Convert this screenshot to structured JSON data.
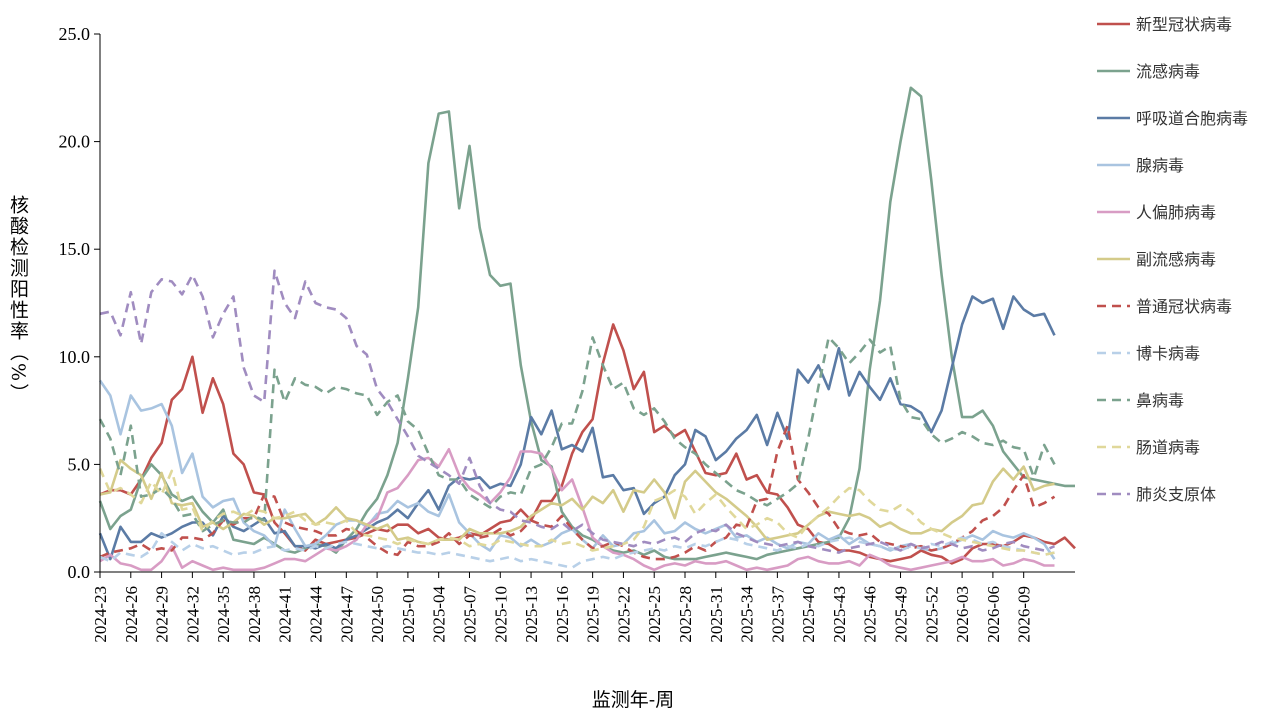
{
  "chart_data": {
    "type": "line",
    "xlabel": "监测年-周",
    "ylabel": "核酸检测阳性率（%）",
    "ylim": [
      0,
      25
    ],
    "yticks": [
      "0.0",
      "5.0",
      "10.0",
      "15.0",
      "20.0",
      "25.0"
    ],
    "grid": false,
    "legend_position": "right",
    "x_tick_labels": [
      "2024-23",
      "2024-26",
      "2024-29",
      "2024-32",
      "2024-35",
      "2024-38",
      "2024-41",
      "2024-44",
      "2024-47",
      "2024-50",
      "2025-01",
      "2025-04",
      "2025-07",
      "2025-10",
      "2025-13",
      "2025-16",
      "2025-19",
      "2025-22",
      "2025-25",
      "2025-28",
      "2025-31",
      "2025-34",
      "2025-37",
      "2025-40",
      "2025-43",
      "2025-46",
      "2025-49",
      "2025-52",
      "2026-03",
      "2026-06",
      "2026-09"
    ],
    "series": [
      {
        "name": "新型冠状病毒",
        "color": "#c0504d",
        "dash": false,
        "values": [
          3.6,
          3.8,
          3.8,
          3.6,
          4.3,
          5.3,
          6.0,
          8.0,
          8.5,
          10.0,
          7.4,
          9.0,
          7.8,
          5.5,
          5.0,
          3.7,
          3.6,
          2.3,
          1.8,
          1.2,
          1.0,
          1.5,
          1.3,
          1.4,
          1.5,
          1.6,
          1.8,
          2.0,
          1.9,
          2.2,
          2.2,
          1.8,
          2.0,
          1.6,
          1.5,
          1.6,
          1.8,
          1.7,
          2.0,
          2.3,
          2.4,
          2.9,
          2.4,
          3.3,
          3.3,
          4.0,
          5.5,
          6.5,
          7.1,
          9.7,
          11.5,
          10.3,
          8.5,
          9.3,
          6.5,
          6.8,
          6.3,
          6.6,
          5.6,
          4.6,
          4.5,
          4.6,
          5.5,
          4.3,
          4.5,
          3.7,
          3.6,
          3.0,
          2.2,
          2.0,
          1.4,
          1.3,
          1.0,
          1.0,
          0.9,
          0.7,
          0.6,
          0.5,
          0.6,
          0.7,
          1.0,
          0.8,
          0.7,
          0.4,
          0.6,
          1.1,
          1.3,
          1.3,
          1.2,
          1.4,
          1.7,
          1.6,
          1.4,
          1.3,
          1.6,
          1.1
        ]
      },
      {
        "name": "流感病毒",
        "color": "#7ba28e",
        "dash": false,
        "values": [
          3.3,
          2.0,
          2.6,
          2.9,
          4.3,
          5.0,
          4.5,
          3.6,
          3.3,
          3.5,
          2.8,
          2.3,
          2.9,
          1.5,
          1.4,
          1.3,
          1.6,
          1.3,
          1.0,
          0.9,
          1.1,
          1.3,
          1.2,
          0.9,
          1.5,
          2.0,
          2.8,
          3.4,
          4.5,
          6.0,
          9.0,
          12.3,
          19.0,
          21.3,
          21.4,
          16.9,
          19.8,
          16.0,
          13.8,
          13.3,
          13.4,
          9.6,
          7.0,
          5.2,
          4.9,
          2.8,
          2.1,
          1.7,
          1.5,
          1.2,
          1.0,
          0.9,
          1.0,
          0.8,
          1.0,
          0.7,
          0.6,
          0.6,
          0.6,
          0.7,
          0.8,
          0.9,
          0.8,
          0.7,
          0.6,
          0.8,
          0.9,
          1.0,
          1.1,
          1.2,
          1.3,
          1.4,
          1.6,
          2.5,
          4.8,
          9.4,
          12.6,
          17.2,
          20.0,
          22.5,
          22.1,
          18.2,
          13.8,
          10.0,
          7.2,
          7.2,
          7.5,
          6.8,
          5.6,
          5.0,
          4.4,
          4.3,
          4.2,
          4.1,
          4.0,
          4.0
        ]
      },
      {
        "name": "呼吸道合胞病毒",
        "color": "#5b7ba5",
        "dash": false,
        "values": [
          1.8,
          0.6,
          2.1,
          1.4,
          1.4,
          1.8,
          1.6,
          1.8,
          2.1,
          2.3,
          2.3,
          1.7,
          2.6,
          2.1,
          1.9,
          2.2,
          2.5,
          1.8,
          1.9,
          1.2,
          1.2,
          1.1,
          1.3,
          1.1,
          1.5,
          1.7,
          2.0,
          2.3,
          2.5,
          2.9,
          2.5,
          3.2,
          3.8,
          2.9,
          4.0,
          4.4,
          4.3,
          4.4,
          3.9,
          4.1,
          4.0,
          5.0,
          7.2,
          6.4,
          7.5,
          5.7,
          5.9,
          5.6,
          6.7,
          4.4,
          4.5,
          3.8,
          3.9,
          2.7,
          3.2,
          3.5,
          4.5,
          5.0,
          6.6,
          6.3,
          5.2,
          5.6,
          6.2,
          6.6,
          7.3,
          5.9,
          7.4,
          6.2,
          9.4,
          8.8,
          9.6,
          8.5,
          10.4,
          8.2,
          9.3,
          8.6,
          8.0,
          9.0,
          7.8,
          7.7,
          7.4,
          6.5,
          7.5,
          9.5,
          11.5,
          12.8,
          12.5,
          12.7,
          11.3,
          12.8,
          12.2,
          11.9,
          12.0,
          11.0
        ]
      },
      {
        "name": "腺病毒",
        "color": "#a9c4e0",
        "dash": false,
        "values": [
          8.9,
          8.2,
          6.4,
          8.2,
          7.5,
          7.6,
          7.8,
          6.8,
          4.6,
          5.5,
          3.5,
          3.0,
          3.3,
          3.4,
          2.3,
          1.9,
          1.7,
          1.2,
          2.9,
          2.0,
          1.2,
          1.3,
          1.7,
          2.2,
          2.4,
          2.4,
          2.1,
          2.7,
          2.8,
          3.3,
          3.0,
          3.2,
          2.8,
          2.6,
          3.6,
          2.3,
          1.8,
          1.3,
          1.0,
          1.7,
          1.6,
          1.2,
          1.5,
          1.2,
          1.4,
          1.8,
          2.0,
          1.5,
          1.1,
          1.7,
          1.2,
          1.3,
          1.8,
          1.9,
          2.4,
          1.8,
          1.9,
          2.3,
          2.0,
          1.8,
          2.0,
          2.2,
          1.6,
          1.7,
          1.4,
          1.6,
          1.3,
          1.1,
          1.4,
          1.3,
          1.8,
          1.5,
          1.7,
          1.3,
          1.6,
          1.3,
          1.2,
          1.0,
          1.2,
          1.3,
          1.1,
          1.0,
          1.1,
          1.3,
          1.5,
          1.7,
          1.5,
          1.9,
          1.7,
          1.6,
          1.8,
          1.6,
          1.3,
          0.6
        ]
      },
      {
        "name": "人偏肺病毒",
        "color": "#d89cc4",
        "dash": false,
        "values": [
          0.5,
          0.8,
          0.4,
          0.3,
          0.1,
          0.1,
          0.5,
          1.2,
          0.2,
          0.5,
          0.3,
          0.1,
          0.2,
          0.1,
          0.1,
          0.1,
          0.2,
          0.4,
          0.6,
          0.6,
          0.5,
          0.8,
          1.1,
          1.0,
          1.2,
          1.5,
          2.2,
          2.5,
          3.7,
          3.9,
          4.5,
          5.2,
          5.3,
          4.9,
          5.7,
          4.5,
          3.9,
          3.6,
          3.2,
          3.7,
          4.4,
          5.6,
          5.6,
          5.5,
          4.8,
          3.8,
          4.3,
          3.0,
          1.6,
          1.2,
          0.9,
          0.8,
          0.6,
          0.3,
          0.1,
          0.3,
          0.4,
          0.3,
          0.5,
          0.4,
          0.4,
          0.5,
          0.3,
          0.1,
          0.2,
          0.1,
          0.2,
          0.3,
          0.6,
          0.7,
          0.5,
          0.4,
          0.4,
          0.5,
          0.3,
          0.8,
          0.6,
          0.3,
          0.2,
          0.1,
          0.2,
          0.3,
          0.4,
          0.5,
          0.7,
          0.5,
          0.5,
          0.6,
          0.3,
          0.4,
          0.6,
          0.5,
          0.3,
          0.3
        ]
      },
      {
        "name": "副流感病毒",
        "color": "#d4cb8a",
        "dash": false,
        "values": [
          3.6,
          3.7,
          5.2,
          4.8,
          4.5,
          3.4,
          4.6,
          3.2,
          3.1,
          3.2,
          2.1,
          2.3,
          2.0,
          2.3,
          2.7,
          2.6,
          2.2,
          2.5,
          2.5,
          2.6,
          2.7,
          2.2,
          2.5,
          3.0,
          2.5,
          2.4,
          2.2,
          2.0,
          2.2,
          1.5,
          1.6,
          1.4,
          1.3,
          1.5,
          1.5,
          1.5,
          2.0,
          1.8,
          1.8,
          1.8,
          1.9,
          2.1,
          2.6,
          2.9,
          3.2,
          3.1,
          3.4,
          2.9,
          3.5,
          3.2,
          3.8,
          2.8,
          3.8,
          3.7,
          4.3,
          3.7,
          2.5,
          4.2,
          4.7,
          4.2,
          3.7,
          3.4,
          3.0,
          2.6,
          2.1,
          1.5,
          1.6,
          1.7,
          1.8,
          2.2,
          2.6,
          2.8,
          2.7,
          2.6,
          2.7,
          2.5,
          2.1,
          2.3,
          2.0,
          1.8,
          1.8,
          2.0,
          1.9,
          2.3,
          2.6,
          3.1,
          3.2,
          4.2,
          4.8,
          4.3,
          4.9,
          3.8,
          4.0,
          4.1
        ]
      },
      {
        "name": "普通冠状病毒",
        "color": "#c0504d",
        "dash": true,
        "values": [
          0.7,
          0.9,
          1.0,
          1.1,
          1.3,
          1.0,
          1.1,
          1.0,
          1.6,
          1.6,
          1.5,
          1.8,
          2.4,
          2.2,
          2.5,
          2.5,
          3.6,
          3.5,
          2.3,
          2.1,
          2.0,
          1.9,
          1.7,
          1.7,
          2.0,
          1.9,
          1.6,
          1.2,
          0.9,
          0.8,
          1.4,
          1.2,
          1.2,
          1.4,
          1.8,
          1.3,
          1.7,
          1.6,
          1.7,
          2.0,
          1.7,
          1.9,
          2.4,
          2.2,
          2.1,
          2.6,
          2.0,
          1.5,
          1.1,
          1.2,
          1.4,
          1.2,
          0.9,
          0.7,
          0.6,
          0.6,
          0.7,
          0.9,
          1.2,
          1.0,
          1.4,
          1.6,
          2.2,
          2.1,
          3.3,
          3.4,
          5.6,
          6.8,
          4.3,
          3.7,
          3.0,
          2.7,
          2.0,
          1.8,
          1.7,
          1.8,
          1.4,
          1.3,
          1.2,
          1.1,
          1.2,
          1.0,
          1.1,
          1.3,
          1.6,
          1.9,
          2.4,
          2.6,
          3.0,
          3.8,
          4.5,
          3.0,
          3.2,
          3.5
        ]
      },
      {
        "name": "博卡病毒",
        "color": "#b8d0e8",
        "dash": true,
        "values": [
          0.7,
          0.5,
          0.9,
          0.8,
          0.7,
          1.0,
          1.8,
          1.4,
          1.0,
          1.3,
          1.1,
          1.2,
          1.0,
          0.8,
          0.9,
          0.9,
          1.1,
          1.2,
          1.0,
          1.1,
          1.0,
          1.2,
          1.1,
          1.3,
          1.4,
          1.3,
          1.2,
          1.1,
          1.2,
          1.1,
          1.0,
          0.9,
          0.9,
          0.8,
          0.9,
          0.8,
          0.7,
          0.6,
          0.5,
          0.6,
          0.7,
          0.5,
          0.6,
          0.5,
          0.4,
          0.3,
          0.2,
          0.5,
          0.6,
          0.7,
          0.6,
          0.8,
          0.9,
          1.0,
          1.1,
          1.0,
          1.2,
          1.1,
          1.3,
          1.2,
          1.4,
          1.6,
          1.5,
          1.3,
          1.2,
          1.1,
          1.0,
          1.2,
          1.1,
          1.3,
          1.2,
          1.4,
          1.5,
          1.6,
          1.4,
          1.3,
          1.2,
          1.1,
          1.0,
          1.2,
          1.1,
          1.3,
          1.2,
          1.4,
          1.6,
          1.5,
          1.3,
          1.4,
          1.2,
          1.1,
          1.0,
          0.9,
          0.8,
          0.9
        ]
      },
      {
        "name": "鼻病毒",
        "color": "#7ba28e",
        "dash": true,
        "values": [
          7.1,
          6.2,
          4.5,
          6.8,
          3.5,
          3.6,
          3.9,
          3.4,
          2.6,
          2.7,
          1.9,
          2.2,
          2.4,
          2.3,
          2.3,
          2.6,
          2.4,
          9.4,
          7.9,
          9.0,
          8.7,
          8.6,
          8.3,
          8.6,
          8.5,
          8.3,
          8.2,
          7.3,
          7.9,
          8.2,
          7.0,
          6.6,
          5.5,
          4.5,
          4.3,
          4.3,
          3.6,
          3.3,
          3.0,
          3.5,
          3.7,
          3.6,
          4.8,
          5.0,
          5.8,
          6.9,
          6.9,
          8.4,
          10.9,
          9.6,
          8.5,
          8.8,
          7.6,
          7.3,
          7.6,
          7.0,
          6.2,
          5.8,
          5.5,
          5.0,
          4.6,
          4.2,
          3.8,
          3.6,
          3.3,
          3.1,
          3.4,
          3.7,
          4.1,
          6.2,
          8.6,
          10.9,
          10.4,
          9.7,
          10.2,
          10.8,
          10.2,
          10.5,
          8.0,
          7.2,
          7.1,
          6.4,
          6.0,
          6.2,
          6.5,
          6.3,
          6.0,
          5.9,
          6.1,
          5.8,
          5.7,
          4.4,
          5.9,
          5.0
        ]
      },
      {
        "name": "肠道病毒",
        "color": "#e0d89a",
        "dash": true,
        "values": [
          4.8,
          3.7,
          3.9,
          3.6,
          3.2,
          4.2,
          3.6,
          4.7,
          2.9,
          3.0,
          1.9,
          2.4,
          2.7,
          2.8,
          2.6,
          2.9,
          2.8,
          2.5,
          2.6,
          2.8,
          2.4,
          2.2,
          2.3,
          2.2,
          2.4,
          1.8,
          1.7,
          1.6,
          1.5,
          1.3,
          1.5,
          1.4,
          1.3,
          1.5,
          1.6,
          1.5,
          1.2,
          1.3,
          1.2,
          1.5,
          1.4,
          1.3,
          1.2,
          1.2,
          1.5,
          1.3,
          1.4,
          1.2,
          1.0,
          1.1,
          1.2,
          1.3,
          1.5,
          2.1,
          3.3,
          3.5,
          3.8,
          3.5,
          2.7,
          3.2,
          3.6,
          3.0,
          2.5,
          2.0,
          2.2,
          2.5,
          2.3,
          1.8,
          1.6,
          2.2,
          2.6,
          3.0,
          3.5,
          3.9,
          3.8,
          3.3,
          2.9,
          2.8,
          3.1,
          2.8,
          2.3,
          2.0,
          1.8,
          1.6,
          1.5,
          1.4,
          1.3,
          1.2,
          1.1,
          1.0,
          1.0,
          0.9,
          0.8,
          0.9
        ]
      },
      {
        "name": "肺炎支原体",
        "color": "#a08cc0",
        "dash": true,
        "values": [
          12.0,
          12.1,
          11.0,
          13.0,
          10.6,
          13.0,
          13.6,
          13.5,
          12.9,
          13.8,
          12.8,
          10.9,
          12.0,
          12.8,
          9.5,
          8.2,
          7.9,
          14.0,
          12.5,
          11.8,
          13.5,
          12.5,
          12.3,
          12.2,
          11.8,
          10.5,
          10.1,
          8.5,
          7.9,
          7.1,
          6.3,
          5.4,
          5.1,
          4.8,
          4.5,
          4.1,
          5.3,
          4.0,
          3.2,
          2.9,
          2.8,
          2.4,
          2.3,
          2.1,
          2.0,
          2.3,
          1.9,
          2.2,
          1.8,
          1.5,
          1.4,
          1.3,
          1.2,
          1.4,
          1.3,
          1.5,
          1.6,
          1.4,
          1.8,
          2.0,
          1.9,
          2.2,
          1.8,
          1.6,
          1.4,
          1.3,
          1.2,
          1.3,
          1.4,
          1.2,
          1.1,
          1.0,
          0.9,
          1.1,
          1.2,
          1.3,
          1.4,
          1.2,
          1.0,
          1.3,
          1.1,
          1.2,
          1.4,
          1.3,
          1.1,
          1.2,
          1.0,
          1.1,
          1.3,
          1.4,
          1.2,
          1.1,
          1.0,
          1.2
        ]
      }
    ]
  }
}
